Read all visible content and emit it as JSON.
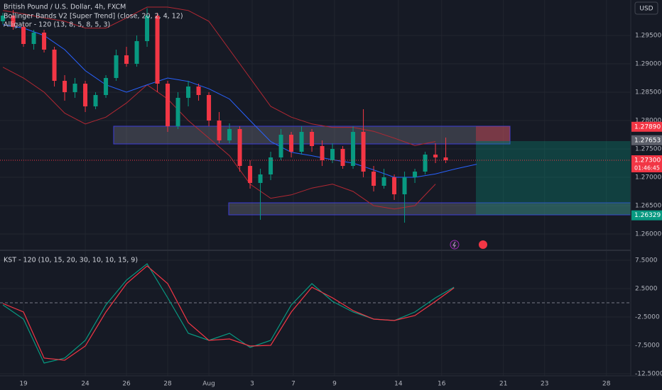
{
  "chart_data": [
    {
      "type": "candlestick",
      "title": "British Pound / U.S. Dollar, 4h, FXCM",
      "indicators": [
        "Bollinger Bands V2 [Super Trend] (close, 20, 2, 4, 12)",
        "Alligator - 120 (13, 8, 5, 8, 5, 3)"
      ],
      "currency": "USD",
      "x": [
        -1,
        -0.5,
        0,
        0.5,
        1,
        1.5,
        2,
        2.5,
        3,
        3.5,
        4,
        4.5,
        5,
        5.5,
        6,
        6.5,
        7,
        7.5,
        8,
        8.5,
        9,
        9.5,
        10,
        10.5,
        11,
        11.5,
        12,
        12.5,
        13,
        13.5,
        14,
        14.5,
        15,
        15.5,
        16,
        16.5,
        17,
        17.5,
        18,
        18.5,
        19,
        19.5,
        20,
        20.5
      ],
      "open": [
        1.2975,
        1.2985,
        1.2965,
        1.2935,
        1.2955,
        1.2925,
        1.287,
        1.285,
        1.2865,
        1.2825,
        1.2845,
        1.2875,
        1.2915,
        1.29,
        1.294,
        1.2985,
        1.2865,
        1.279,
        1.284,
        1.286,
        1.2845,
        1.28,
        1.2765,
        1.2785,
        1.272,
        1.269,
        1.2705,
        1.2735,
        1.2775,
        1.2745,
        1.278,
        1.2755,
        1.273,
        1.275,
        1.272,
        1.278,
        1.271,
        1.2685,
        1.27,
        1.267,
        1.27,
        1.271,
        1.274,
        1.2735
      ],
      "high": [
        1.299,
        1.2995,
        1.297,
        1.296,
        1.296,
        1.293,
        1.288,
        1.2875,
        1.287,
        1.285,
        1.288,
        1.2925,
        1.293,
        1.295,
        1.2998,
        1.299,
        1.287,
        1.285,
        1.287,
        1.2865,
        1.285,
        1.2815,
        1.2795,
        1.279,
        1.273,
        1.2715,
        1.2745,
        1.2785,
        1.278,
        1.279,
        1.2785,
        1.2765,
        1.276,
        1.2755,
        1.279,
        1.282,
        1.272,
        1.2715,
        1.2705,
        1.271,
        1.2715,
        1.2745,
        1.276,
        1.277
      ],
      "low": [
        1.297,
        1.296,
        1.293,
        1.2925,
        1.292,
        1.286,
        1.2835,
        1.284,
        1.2815,
        1.282,
        1.284,
        1.287,
        1.2895,
        1.2895,
        1.293,
        1.285,
        1.278,
        1.2785,
        1.2825,
        1.2835,
        1.279,
        1.276,
        1.276,
        1.271,
        1.268,
        1.2625,
        1.2695,
        1.273,
        1.2735,
        1.274,
        1.2745,
        1.272,
        1.2725,
        1.2715,
        1.2715,
        1.27,
        1.2675,
        1.268,
        1.266,
        1.262,
        1.269,
        1.2705,
        1.2725,
        1.2725
      ],
      "close": [
        1.2985,
        1.2965,
        1.2935,
        1.2955,
        1.2925,
        1.287,
        1.285,
        1.2865,
        1.2825,
        1.2845,
        1.2875,
        1.2915,
        1.29,
        1.294,
        1.2985,
        1.2865,
        1.279,
        1.284,
        1.286,
        1.2845,
        1.28,
        1.2765,
        1.2785,
        1.272,
        1.269,
        1.2705,
        1.2735,
        1.2775,
        1.2745,
        1.278,
        1.2755,
        1.273,
        1.275,
        1.272,
        1.278,
        1.271,
        1.2685,
        1.27,
        1.267,
        1.27,
        1.271,
        1.274,
        1.2735,
        1.273
      ],
      "up_color": "#089981",
      "down_color": "#f23645",
      "overlays": [
        {
          "color": "#b22833",
          "x": [
            -1,
            0,
            1,
            2,
            3,
            4,
            5,
            6,
            7,
            8,
            9,
            10,
            11,
            12,
            13,
            14,
            15,
            16,
            17,
            18,
            19,
            20
          ],
          "values": [
            1.2994,
            1.2988,
            1.2981,
            1.2975,
            1.2963,
            1.2963,
            1.2981,
            1.3,
            1.3,
            1.2994,
            1.2975,
            1.2925,
            1.2875,
            1.2825,
            1.2806,
            1.2794,
            1.2788,
            1.2788,
            1.2781,
            1.2769,
            1.2756,
            1.2763
          ]
        },
        {
          "color": "#b22833",
          "x": [
            -1,
            0,
            1,
            2,
            3,
            4,
            5,
            6,
            7,
            8,
            9,
            10,
            11,
            12,
            13,
            14,
            15,
            16,
            17,
            18,
            19,
            20
          ],
          "values": [
            1.2894,
            1.2875,
            1.285,
            1.2813,
            1.2794,
            1.2806,
            1.2831,
            1.2863,
            1.2838,
            1.28,
            1.2769,
            1.2738,
            1.2688,
            1.2663,
            1.2669,
            1.2681,
            1.2688,
            1.2675,
            1.265,
            1.2644,
            1.265,
            1.2688
          ]
        },
        {
          "color": "#2962ff",
          "x": [
            -1,
            0,
            1,
            2,
            3,
            4,
            5,
            6,
            7,
            8,
            9,
            10,
            11,
            12,
            13,
            14,
            15,
            16,
            17,
            18,
            19,
            20,
            21,
            22
          ],
          "values": [
            1.2969,
            1.2963,
            1.295,
            1.2925,
            1.2888,
            1.2863,
            1.285,
            1.2863,
            1.2875,
            1.2869,
            1.2856,
            1.2838,
            1.28,
            1.2763,
            1.2744,
            1.2738,
            1.2731,
            1.2725,
            1.2713,
            1.27,
            1.27,
            1.2706,
            1.2715,
            1.2723
          ]
        }
      ],
      "xlim": [
        -1.14,
        29.48
      ],
      "xticks": [
        {
          "value": 0,
          "label": "19"
        },
        {
          "value": 3,
          "label": "24"
        },
        {
          "value": 5,
          "label": "26"
        },
        {
          "value": 7,
          "label": "28"
        },
        {
          "value": 9,
          "label": "Aug"
        },
        {
          "value": 11.1,
          "label": "3"
        },
        {
          "value": 13.1,
          "label": "7"
        },
        {
          "value": 15.1,
          "label": "9"
        },
        {
          "value": 18.2,
          "label": "14"
        },
        {
          "value": 20.3,
          "label": "16"
        },
        {
          "value": 23.3,
          "label": "21"
        },
        {
          "value": 25.3,
          "label": "23"
        },
        {
          "value": 28.3,
          "label": "28"
        }
      ],
      "ylim": [
        1.25725,
        1.30125
      ],
      "yticks": [
        {
          "value": 1.295,
          "label": "1.29500"
        },
        {
          "value": 1.29,
          "label": "1.29000"
        },
        {
          "value": 1.285,
          "label": "1.28500"
        },
        {
          "value": 1.28,
          "label": "1.28000"
        },
        {
          "value": 1.275,
          "label": "1.27500"
        },
        {
          "value": 1.27,
          "label": "1.27000"
        },
        {
          "value": 1.265,
          "label": "1.26500"
        },
        {
          "value": 1.26,
          "label": "1.26000"
        }
      ],
      "price_tags": [
        {
          "value": 1.2789,
          "label": "1.27890",
          "color": "#f23645"
        },
        {
          "value": 1.27653,
          "label": "1.27653",
          "color": "#5d606b"
        },
        {
          "value": 1.273,
          "label": "1.27300",
          "color": "#f23645"
        },
        {
          "value": 1.26329,
          "label": "1.26329",
          "color": "#089981"
        }
      ],
      "countdown": "01:46:45",
      "grid": true
    },
    {
      "type": "line",
      "title": "KST - 120 (10, 15, 20, 30, 10, 10, 15, 9)",
      "x": [
        -1,
        0,
        1,
        2,
        3,
        4,
        5,
        6,
        7,
        8,
        9,
        10,
        11,
        12,
        13,
        14,
        15,
        16,
        17,
        18,
        19,
        20,
        20.9
      ],
      "series": [
        {
          "color": "#089981",
          "values": [
            -0.375,
            -2.875,
            -10.625,
            -9.75,
            -6.625,
            -0.375,
            4.0,
            6.875,
            0.875,
            -5.375,
            -6.625,
            -5.375,
            -7.875,
            -6.625,
            -0.375,
            3.375,
            0.25,
            -1.625,
            -2.875,
            -3.125,
            -1.625,
            0.875,
            2.75
          ]
        },
        {
          "color": "#f23645",
          "values": [
            -0.125,
            -1.625,
            -9.75,
            -10.125,
            -7.625,
            -1.625,
            3.375,
            6.5,
            3.375,
            -3.5,
            -6.625,
            -6.375,
            -7.625,
            -7.5,
            -1.625,
            2.75,
            0.875,
            -1.375,
            -2.875,
            -3.125,
            -2.25,
            0.25,
            2.625
          ]
        }
      ],
      "ylim": [
        -12.875,
        9
      ],
      "yticks": [
        {
          "value": 7.5,
          "label": "7.5000"
        },
        {
          "value": 2.5,
          "label": "2.5000"
        },
        {
          "value": -2.5,
          "label": "-2.5000"
        },
        {
          "value": -7.5,
          "label": "-7.5000"
        },
        {
          "value": -12.5,
          "label": "-12.5000"
        }
      ],
      "zero_line": 0
    }
  ]
}
